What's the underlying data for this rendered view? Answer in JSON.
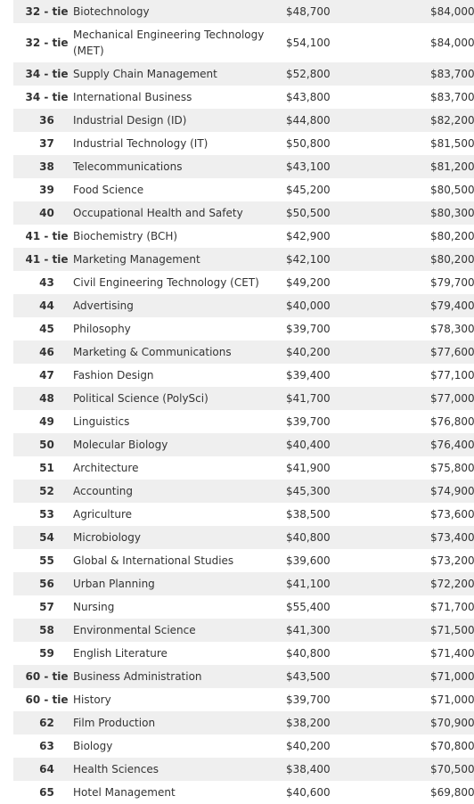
{
  "rows": [
    {
      "rank": "32 - tie",
      "major": "Biotechnology",
      "early": "$48,700",
      "mid": "$84,000"
    },
    {
      "rank": "32 - tie",
      "major": "Mechanical Engineering Technology (MET)",
      "early": "$54,100",
      "mid": "$84,000"
    },
    {
      "rank": "34 - tie",
      "major": "Supply Chain Management",
      "early": "$52,800",
      "mid": "$83,700"
    },
    {
      "rank": "34 - tie",
      "major": "International Business",
      "early": "$43,800",
      "mid": "$83,700"
    },
    {
      "rank": "36",
      "major": "Industrial Design (ID)",
      "early": "$44,800",
      "mid": "$82,200"
    },
    {
      "rank": "37",
      "major": "Industrial Technology (IT)",
      "early": "$50,800",
      "mid": "$81,500"
    },
    {
      "rank": "38",
      "major": "Telecommunications",
      "early": "$43,100",
      "mid": "$81,200"
    },
    {
      "rank": "39",
      "major": "Food Science",
      "early": "$45,200",
      "mid": "$80,500"
    },
    {
      "rank": "40",
      "major": "Occupational Health and Safety",
      "early": "$50,500",
      "mid": "$80,300"
    },
    {
      "rank": "41 - tie",
      "major": "Biochemistry (BCH)",
      "early": "$42,900",
      "mid": "$80,200"
    },
    {
      "rank": "41 - tie",
      "major": "Marketing Management",
      "early": "$42,100",
      "mid": "$80,200"
    },
    {
      "rank": "43",
      "major": "Civil Engineering Technology (CET)",
      "early": "$49,200",
      "mid": "$79,700"
    },
    {
      "rank": "44",
      "major": "Advertising",
      "early": "$40,000",
      "mid": "$79,400"
    },
    {
      "rank": "45",
      "major": "Philosophy",
      "early": "$39,700",
      "mid": "$78,300"
    },
    {
      "rank": "46",
      "major": "Marketing & Communications",
      "early": "$40,200",
      "mid": "$77,600"
    },
    {
      "rank": "47",
      "major": "Fashion Design",
      "early": "$39,400",
      "mid": "$77,100"
    },
    {
      "rank": "48",
      "major": "Political Science (PolySci)",
      "early": "$41,700",
      "mid": "$77,000"
    },
    {
      "rank": "49",
      "major": "Linguistics",
      "early": "$39,700",
      "mid": "$76,800"
    },
    {
      "rank": "50",
      "major": "Molecular Biology",
      "early": "$40,400",
      "mid": "$76,400"
    },
    {
      "rank": "51",
      "major": "Architecture",
      "early": "$41,900",
      "mid": "$75,800"
    },
    {
      "rank": "52",
      "major": "Accounting",
      "early": "$45,300",
      "mid": "$74,900"
    },
    {
      "rank": "53",
      "major": "Agriculture",
      "early": "$38,500",
      "mid": "$73,600"
    },
    {
      "rank": "54",
      "major": "Microbiology",
      "early": "$40,800",
      "mid": "$73,400"
    },
    {
      "rank": "55",
      "major": "Global & International Studies",
      "early": "$39,600",
      "mid": "$73,200"
    },
    {
      "rank": "56",
      "major": "Urban Planning",
      "early": "$41,100",
      "mid": "$72,200"
    },
    {
      "rank": "57",
      "major": "Nursing",
      "early": "$55,400",
      "mid": "$71,700"
    },
    {
      "rank": "58",
      "major": "Environmental Science",
      "early": "$41,300",
      "mid": "$71,500"
    },
    {
      "rank": "59",
      "major": "English Literature",
      "early": "$40,800",
      "mid": "$71,400"
    },
    {
      "rank": "60 - tie",
      "major": "Business Administration",
      "early": "$43,500",
      "mid": "$71,000"
    },
    {
      "rank": "60 - tie",
      "major": "History",
      "early": "$39,700",
      "mid": "$71,000"
    },
    {
      "rank": "62",
      "major": "Film Production",
      "early": "$38,200",
      "mid": "$70,900"
    },
    {
      "rank": "63",
      "major": "Biology",
      "early": "$40,200",
      "mid": "$70,800"
    },
    {
      "rank": "64",
      "major": "Health Sciences",
      "early": "$38,400",
      "mid": "$70,500"
    },
    {
      "rank": "65",
      "major": "Hotel Management",
      "early": "$40,600",
      "mid": "$69,800"
    }
  ]
}
